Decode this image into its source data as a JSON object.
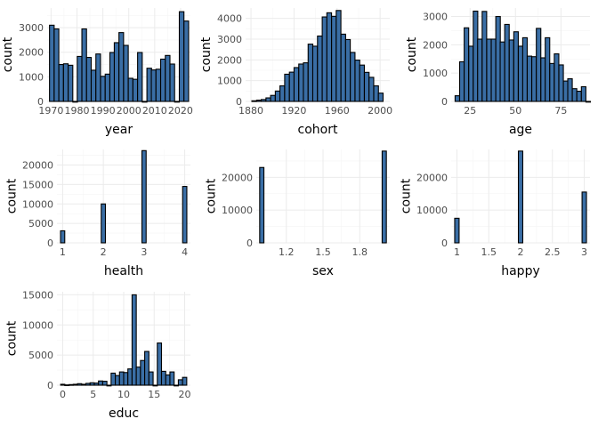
{
  "colors": {
    "bar_fill": "#3a6ea5",
    "bar_stroke": "#000000",
    "grid": "#ebebeb",
    "background": "#ffffff"
  },
  "chart_data": [
    {
      "type": "bar",
      "xlabel": "year",
      "ylabel": "count",
      "xlim": [
        1968.5,
        2023.8
      ],
      "ylim": [
        0,
        3800
      ],
      "xticks": [
        1970,
        1980,
        1990,
        2000,
        2010,
        2020
      ],
      "yticks": [
        0,
        1000,
        2000,
        3000
      ],
      "bin_width": 1.79,
      "x": [
        1970.3,
        1972.1,
        1973.9,
        1975.7,
        1977.5,
        1979.3,
        1981.0,
        1982.8,
        1984.6,
        1986.4,
        1988.2,
        1990.0,
        1991.8,
        1993.6,
        1995.3,
        1997.1,
        1998.9,
        2000.7,
        2002.5,
        2004.3,
        2006.1,
        2007.9,
        2009.6,
        2011.4,
        2013.2,
        2015.0,
        2016.8,
        2018.6,
        2020.4,
        2022.2
      ],
      "values": [
        3100,
        2950,
        1500,
        1530,
        1470,
        0,
        1830,
        2950,
        1790,
        1270,
        1930,
        1020,
        1110,
        1990,
        2390,
        2800,
        2280,
        940,
        900,
        1990,
        0,
        1350,
        1280,
        1310,
        1720,
        1870,
        1520,
        0,
        3650,
        3270
      ]
    },
    {
      "type": "bar",
      "xlabel": "cohort",
      "ylabel": "count",
      "xlim": [
        1875.0,
        2009.0
      ],
      "ylim": [
        0,
        4500
      ],
      "xticks": [
        1880,
        1920,
        1960,
        2000
      ],
      "yticks": [
        0,
        1000,
        2000,
        3000,
        4000
      ],
      "bin_width": 4.36,
      "x": [
        1883.0,
        1887.4,
        1891.7,
        1896.1,
        1900.4,
        1904.8,
        1909.1,
        1913.5,
        1917.9,
        1922.2,
        1926.6,
        1930.9,
        1935.3,
        1939.6,
        1944.0,
        1948.4,
        1952.7,
        1957.1,
        1961.4,
        1965.8,
        1970.1,
        1974.5,
        1978.9,
        1983.2,
        1987.6,
        1991.9,
        1996.3,
        2000.6
      ],
      "values": [
        30,
        60,
        90,
        170,
        290,
        500,
        750,
        1310,
        1410,
        1630,
        1800,
        1860,
        2760,
        2660,
        3150,
        4070,
        4270,
        4100,
        4380,
        3240,
        2980,
        2360,
        1990,
        1750,
        1400,
        1160,
        750,
        400
      ]
    },
    {
      "type": "bar",
      "xlabel": "age",
      "ylabel": "count",
      "xlim": [
        14.6,
        91.0
      ],
      "ylim": [
        0,
        3300
      ],
      "xticks": [
        25,
        50,
        75
      ],
      "yticks": [
        0,
        1000,
        2000,
        3000
      ],
      "bin_width": 2.48,
      "x": [
        18.0,
        20.5,
        23.0,
        25.5,
        28.0,
        30.4,
        32.9,
        35.4,
        37.9,
        40.4,
        42.8,
        45.3,
        47.8,
        50.3,
        52.8,
        55.2,
        57.7,
        60.2,
        62.7,
        65.2,
        67.6,
        70.1,
        72.6,
        75.1,
        77.6,
        80.0,
        82.5,
        85.0,
        87.5,
        90.0
      ],
      "values": [
        200,
        1400,
        2600,
        1950,
        3190,
        2200,
        3180,
        2200,
        2200,
        3000,
        2100,
        2720,
        2170,
        2460,
        1950,
        2250,
        1600,
        1580,
        2580,
        1540,
        2250,
        1340,
        1680,
        1290,
        720,
        800,
        450,
        360,
        520,
        0
      ]
    },
    {
      "type": "bar",
      "xlabel": "health",
      "ylabel": "count",
      "xlim": [
        0.86,
        4.14
      ],
      "ylim": [
        0,
        24000
      ],
      "xticks": [
        1,
        2,
        3,
        4
      ],
      "yticks": [
        0,
        5000,
        10000,
        15000,
        20000
      ],
      "bin_width": 0.1034,
      "x": [
        1.0,
        2.0,
        3.0,
        4.0
      ],
      "values": [
        3100,
        10000,
        23700,
        14500
      ]
    },
    {
      "type": "bar",
      "xlabel": "sex",
      "ylabel": "count",
      "xlim": [
        0.955,
        2.045
      ],
      "ylim": [
        0,
        28500
      ],
      "xticks": [
        1.2,
        1.5,
        1.8
      ],
      "yticks": [
        0,
        10000,
        20000
      ],
      "bin_width": 0.0345,
      "x": [
        1.0,
        2.0
      ],
      "values": [
        23000,
        28000
      ]
    },
    {
      "type": "bar",
      "xlabel": "happy",
      "ylabel": "count",
      "xlim": [
        0.91,
        3.09
      ],
      "ylim": [
        0,
        28500
      ],
      "xticks": [
        1.0,
        1.5,
        2.0,
        2.5,
        3.0
      ],
      "yticks": [
        0,
        10000,
        20000
      ],
      "bin_width": 0.069,
      "x": [
        1.0,
        2.0,
        3.0
      ],
      "values": [
        7500,
        28000,
        15500
      ]
    },
    {
      "type": "bar",
      "xlabel": "educ",
      "ylabel": "count",
      "xlim": [
        -0.95,
        20.95
      ],
      "ylim": [
        0,
        15500
      ],
      "xticks": [
        0,
        5,
        10,
        15,
        20
      ],
      "yticks": [
        0,
        5000,
        10000,
        15000
      ],
      "bin_width": 0.69,
      "x": [
        0,
        0.69,
        1.38,
        2.07,
        2.76,
        3.45,
        4.14,
        4.83,
        5.52,
        6.21,
        6.9,
        7.59,
        8.28,
        8.97,
        9.66,
        10.34,
        11.03,
        11.72,
        12.41,
        13.1,
        13.79,
        14.48,
        15.17,
        15.86,
        16.55,
        17.24,
        17.93,
        18.62,
        19.31,
        20.0
      ],
      "values": [
        150,
        50,
        100,
        150,
        250,
        150,
        300,
        400,
        350,
        700,
        650,
        0,
        2000,
        1600,
        2200,
        2100,
        2700,
        15000,
        3000,
        4100,
        5600,
        2200,
        0,
        7000,
        2300,
        1700,
        2200,
        0,
        900,
        1300
      ]
    }
  ]
}
